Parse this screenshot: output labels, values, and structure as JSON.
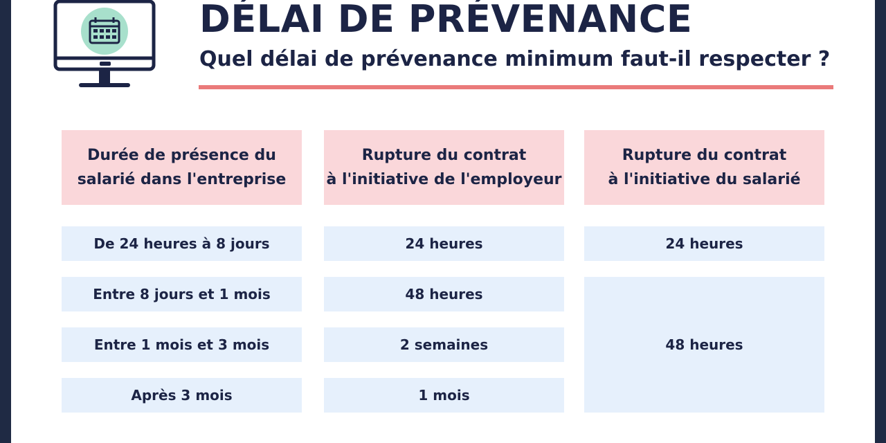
{
  "header": {
    "title": "DÉLAI DE PRÉVENANCE",
    "subtitle": "Quel délai de prévenance minimum faut-il respecter ?"
  },
  "table": {
    "columns": [
      "Durée de présence du\nsalarié dans l'entreprise",
      "Rupture du contrat\nà l'initiative de l'employeur",
      "Rupture du contrat\nà l'initiative du salarié"
    ],
    "durations": [
      "De 24 heures à 8 jours",
      "Entre 8 jours et 1 mois",
      "Entre 1 mois et 3 mois",
      "Après 3 mois"
    ],
    "employer": [
      "24 heures",
      "48 heures",
      "2 semaines",
      "1 mois"
    ],
    "employee": [
      "24 heures",
      "48 heures"
    ]
  },
  "colors": {
    "navy": "#1c2445",
    "accent_red": "#ea7a7a",
    "header_pink": "#fad7da",
    "cell_blue": "#e6f0fc",
    "icon_mint": "#a8e0cc"
  },
  "icons": [
    "monitor-icon",
    "calendar-icon"
  ]
}
